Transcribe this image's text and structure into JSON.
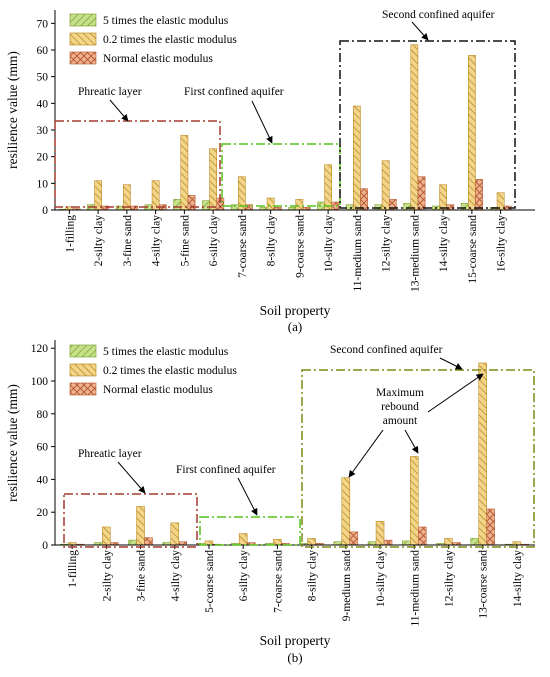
{
  "colors": {
    "s5": "#c7e08c",
    "s5_hatch": "#6f9a1e",
    "s02": "#f2d58a",
    "s02_hatch": "#b07d10",
    "snorm": "#eeb28f",
    "snorm_hatch": "#b2532c",
    "box_red": "#a33a2f",
    "box_green": "#56c11f",
    "box_black": "#111111",
    "box_olive": "#7e8a17"
  },
  "chart_data": [
    {
      "type": "bar",
      "panel_label": "(a)",
      "xlabel": "Soil property",
      "ylabel": "resilience value (mm)",
      "ylim": [
        0,
        75
      ],
      "yticks": [
        0,
        10,
        20,
        30,
        40,
        50,
        60,
        70
      ],
      "categories": [
        "1-filling",
        "2-silty clay",
        "3-fine sand",
        "4-silty clay",
        "5-fine sand",
        "6-silty clay",
        "7-coarse sand",
        "8-silty clay",
        "9-coarse sand",
        "10-silty clay",
        "11-medium sand",
        "12-silty clay",
        "13-medium sand",
        "14-silty clay",
        "15-coarse sand",
        "16-silty clay"
      ],
      "series": [
        {
          "name": "5 times the elastic modulus",
          "values": [
            0.3,
            2,
            1.5,
            2,
            4,
            3.5,
            2,
            1,
            1,
            3,
            2,
            2,
            2.5,
            1.5,
            2.5,
            1
          ]
        },
        {
          "name": "0.2 times the elastic modulus",
          "values": [
            1.2,
            11,
            9.5,
            11,
            28,
            23,
            12.5,
            4.5,
            4,
            17,
            39,
            18.5,
            62,
            9.5,
            58,
            6.5
          ]
        },
        {
          "name": "Normal elastic modulus",
          "values": [
            0.5,
            1.5,
            1.5,
            2,
            5.5,
            4.5,
            2,
            1,
            1,
            3,
            8,
            4,
            12.5,
            2,
            11.5,
            1.5
          ]
        }
      ],
      "legend": {
        "position": "top-left"
      },
      "annotations": [
        "Phreatic layer",
        "First confined aquifer",
        "Second confined aquifer"
      ]
    },
    {
      "type": "bar",
      "panel_label": "(b)",
      "xlabel": "Soil property",
      "ylabel": "resilience value (mm)",
      "ylim": [
        0,
        125
      ],
      "yticks": [
        0,
        20,
        40,
        60,
        80,
        100,
        120
      ],
      "categories": [
        "1-filling",
        "2-silty clay",
        "3-fine sand",
        "4-silty clay",
        "5-coarse sand",
        "6-silty clay",
        "7-coarse sand",
        "8-silty clay",
        "9-medium sand",
        "10-silty clay",
        "11-medium sand",
        "12-silty clay",
        "13-coarse sand",
        "14-silty clay"
      ],
      "series": [
        {
          "name": "5 times the elastic modulus",
          "values": [
            0.5,
            1.5,
            3,
            1.5,
            1,
            1,
            1,
            1,
            2,
            2,
            2.5,
            1,
            4,
            0.5
          ]
        },
        {
          "name": "0.2 times the elastic modulus",
          "values": [
            1.5,
            11,
            23.5,
            13.5,
            2.5,
            7,
            3.5,
            4,
            41,
            14.5,
            54,
            4,
            111,
            2
          ]
        },
        {
          "name": "Normal elastic modulus",
          "values": [
            0.5,
            1.5,
            4.5,
            2,
            0.5,
            1.5,
            1,
            1,
            8,
            3,
            11,
            1.5,
            22,
            0.5
          ]
        }
      ],
      "legend": {
        "position": "top-left"
      },
      "annotations": [
        "Phreatic layer",
        "First confined aquifer",
        "Second confined aquifer",
        "Maximum rebound amount"
      ]
    }
  ],
  "annotations": {
    "a": {
      "phreatic": "Phreatic layer",
      "first": "First confined aquifer",
      "second": "Second confined aquifer"
    },
    "b": {
      "phreatic": "Phreatic layer",
      "first": "First confined aquifer",
      "second": "Second confined aquifer",
      "max_line1": "Maximum",
      "max_line2": "rebound",
      "max_line3": "amount"
    }
  }
}
